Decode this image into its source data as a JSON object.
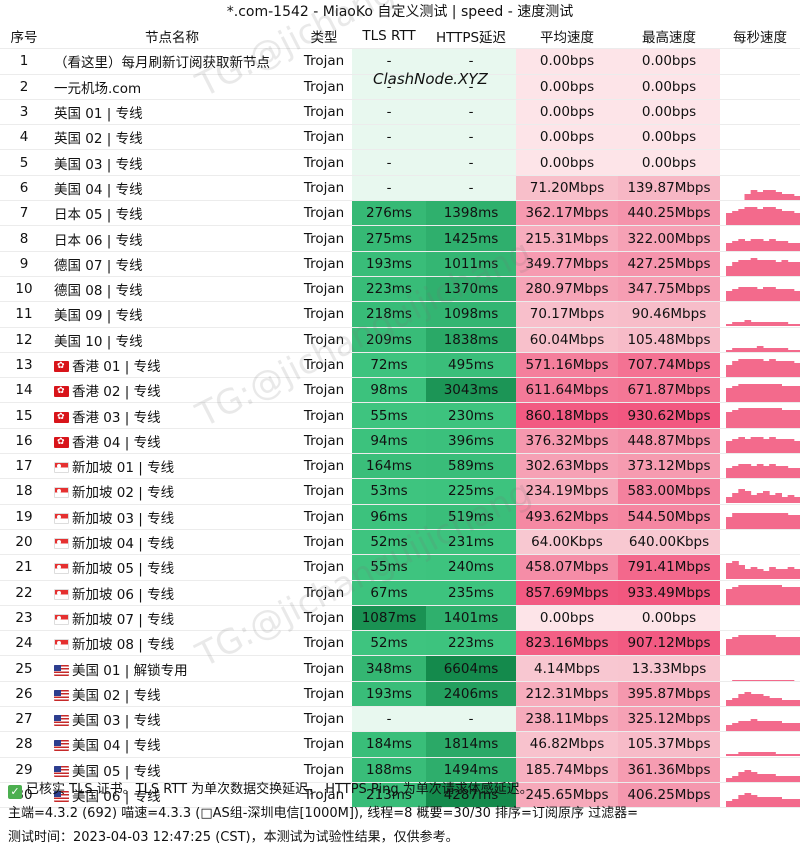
{
  "title": "*.com-1542 - MiaoKo 自定义测试 | speed - 速度测试",
  "columns": [
    "序号",
    "节点名称",
    "类型",
    "TLS RTT",
    "HTTPS延迟",
    "平均速度",
    "最高速度",
    "每秒速度"
  ],
  "rows": [
    {
      "no": "1",
      "flag": "",
      "name": "（看这里）每月刷新订阅获取新节点",
      "type": "Trojan",
      "tls": "-",
      "https": "-",
      "avg": "0.00bps",
      "max": "0.00bps",
      "tls_ms": null,
      "https_ms": null,
      "avg_mbps": 0,
      "max_mbps": 0,
      "spark": []
    },
    {
      "no": "2",
      "flag": "",
      "name": "一元机场.com",
      "type": "Trojan",
      "tls": "-",
      "https": "-",
      "avg": "0.00bps",
      "max": "0.00bps",
      "tls_ms": null,
      "https_ms": null,
      "avg_mbps": 0,
      "max_mbps": 0,
      "spark": []
    },
    {
      "no": "3",
      "flag": "",
      "name": "英国 01 | 专线",
      "type": "Trojan",
      "tls": "-",
      "https": "-",
      "avg": "0.00bps",
      "max": "0.00bps",
      "tls_ms": null,
      "https_ms": null,
      "avg_mbps": 0,
      "max_mbps": 0,
      "spark": []
    },
    {
      "no": "4",
      "flag": "",
      "name": "英国 02 | 专线",
      "type": "Trojan",
      "tls": "-",
      "https": "-",
      "avg": "0.00bps",
      "max": "0.00bps",
      "tls_ms": null,
      "https_ms": null,
      "avg_mbps": 0,
      "max_mbps": 0,
      "spark": []
    },
    {
      "no": "5",
      "flag": "",
      "name": "美国 03 | 专线",
      "type": "Trojan",
      "tls": "-",
      "https": "-",
      "avg": "0.00bps",
      "max": "0.00bps",
      "tls_ms": null,
      "https_ms": null,
      "avg_mbps": 0,
      "max_mbps": 0,
      "spark": []
    },
    {
      "no": "6",
      "flag": "",
      "name": "美国 04 | 专线",
      "type": "Trojan",
      "tls": "-",
      "https": "-",
      "avg": "71.20Mbps",
      "max": "139.87Mbps",
      "tls_ms": null,
      "https_ms": null,
      "avg_mbps": 71.2,
      "max_mbps": 139.87,
      "spark": [
        0,
        0,
        0,
        0.3,
        0.5,
        0.4,
        0.5,
        0.5,
        0.4,
        0.3,
        0.3,
        0.2
      ]
    },
    {
      "no": "7",
      "flag": "",
      "name": "日本 05 | 专线",
      "type": "Trojan",
      "tls": "276ms",
      "https": "1398ms",
      "avg": "362.17Mbps",
      "max": "440.25Mbps",
      "tls_ms": 276,
      "https_ms": 1398,
      "avg_mbps": 362.17,
      "max_mbps": 440.25,
      "spark": [
        0.6,
        0.7,
        0.8,
        0.9,
        0.9,
        0.8,
        0.9,
        0.9,
        0.8,
        0.7,
        0.7,
        0.6
      ]
    },
    {
      "no": "8",
      "flag": "",
      "name": "日本 06 | 专线",
      "type": "Trojan",
      "tls": "275ms",
      "https": "1425ms",
      "avg": "215.31Mbps",
      "max": "322.00Mbps",
      "tls_ms": 275,
      "https_ms": 1425,
      "avg_mbps": 215.31,
      "max_mbps": 322.0,
      "spark": [
        0.4,
        0.5,
        0.6,
        0.5,
        0.6,
        0.6,
        0.5,
        0.6,
        0.5,
        0.5,
        0.4,
        0.4
      ]
    },
    {
      "no": "9",
      "flag": "",
      "name": "德国 07 | 专线",
      "type": "Trojan",
      "tls": "193ms",
      "https": "1011ms",
      "avg": "349.77Mbps",
      "max": "427.25Mbps",
      "tls_ms": 193,
      "https_ms": 1011,
      "avg_mbps": 349.77,
      "max_mbps": 427.25,
      "spark": [
        0.5,
        0.7,
        0.8,
        0.8,
        0.9,
        0.8,
        0.8,
        0.8,
        0.7,
        0.8,
        0.7,
        0.7
      ]
    },
    {
      "no": "10",
      "flag": "",
      "name": "德国 08 | 专线",
      "type": "Trojan",
      "tls": "223ms",
      "https": "1370ms",
      "avg": "280.97Mbps",
      "max": "347.75Mbps",
      "tls_ms": 223,
      "https_ms": 1370,
      "avg_mbps": 280.97,
      "max_mbps": 347.75,
      "spark": [
        0.5,
        0.6,
        0.7,
        0.7,
        0.7,
        0.6,
        0.7,
        0.7,
        0.6,
        0.6,
        0.6,
        0.5
      ]
    },
    {
      "no": "11",
      "flag": "",
      "name": "美国 09 | 专线",
      "type": "Trojan",
      "tls": "218ms",
      "https": "1098ms",
      "avg": "70.17Mbps",
      "max": "90.46Mbps",
      "tls_ms": 218,
      "https_ms": 1098,
      "avg_mbps": 70.17,
      "max_mbps": 90.46,
      "spark": [
        0.1,
        0.2,
        0.2,
        0.3,
        0.2,
        0.2,
        0.2,
        0.2,
        0.2,
        0.2,
        0.1,
        0.1
      ]
    },
    {
      "no": "12",
      "flag": "",
      "name": "美国 10 | 专线",
      "type": "Trojan",
      "tls": "209ms",
      "https": "1838ms",
      "avg": "60.04Mbps",
      "max": "105.48Mbps",
      "tls_ms": 209,
      "https_ms": 1838,
      "avg_mbps": 60.04,
      "max_mbps": 105.48,
      "spark": [
        0.1,
        0.2,
        0.2,
        0.2,
        0.2,
        0.3,
        0.2,
        0.2,
        0.2,
        0.2,
        0.1,
        0.1
      ]
    },
    {
      "no": "13",
      "flag": "hk",
      "name": "香港 01 | 专线",
      "type": "Trojan",
      "tls": "72ms",
      "https": "495ms",
      "avg": "571.16Mbps",
      "max": "707.74Mbps",
      "tls_ms": 72,
      "https_ms": 495,
      "avg_mbps": 571.16,
      "max_mbps": 707.74,
      "spark": [
        0.6,
        0.8,
        0.9,
        0.9,
        0.9,
        0.9,
        0.8,
        0.9,
        0.8,
        0.8,
        0.8,
        0.7
      ]
    },
    {
      "no": "14",
      "flag": "hk",
      "name": "香港 02 | 专线",
      "type": "Trojan",
      "tls": "98ms",
      "https": "3043ms",
      "avg": "611.64Mbps",
      "max": "671.87Mbps",
      "tls_ms": 98,
      "https_ms": 3043,
      "avg_mbps": 611.64,
      "max_mbps": 671.87,
      "spark": [
        0.7,
        0.8,
        0.9,
        0.9,
        0.9,
        0.9,
        0.9,
        0.9,
        0.9,
        0.8,
        0.8,
        0.8
      ]
    },
    {
      "no": "15",
      "flag": "hk",
      "name": "香港 03 | 专线",
      "type": "Trojan",
      "tls": "55ms",
      "https": "230ms",
      "avg": "860.18Mbps",
      "max": "930.62Mbps",
      "tls_ms": 55,
      "https_ms": 230,
      "avg_mbps": 860.18,
      "max_mbps": 930.62,
      "spark": [
        0.8,
        0.9,
        1,
        1,
        1,
        1,
        1,
        1,
        1,
        0.9,
        0.9,
        0.9
      ]
    },
    {
      "no": "16",
      "flag": "hk",
      "name": "香港 04 | 专线",
      "type": "Trojan",
      "tls": "94ms",
      "https": "396ms",
      "avg": "376.32Mbps",
      "max": "448.87Mbps",
      "tls_ms": 94,
      "https_ms": 396,
      "avg_mbps": 376.32,
      "max_mbps": 448.87,
      "spark": [
        0.6,
        0.7,
        0.8,
        0.7,
        0.8,
        0.8,
        0.7,
        0.8,
        0.7,
        0.7,
        0.7,
        0.6
      ]
    },
    {
      "no": "17",
      "flag": "sg",
      "name": "新加坡 01 | 专线",
      "type": "Trojan",
      "tls": "164ms",
      "https": "589ms",
      "avg": "302.63Mbps",
      "max": "373.12Mbps",
      "tls_ms": 164,
      "https_ms": 589,
      "avg_mbps": 302.63,
      "max_mbps": 373.12,
      "spark": [
        0.5,
        0.6,
        0.7,
        0.7,
        0.6,
        0.7,
        0.6,
        0.7,
        0.6,
        0.6,
        0.5,
        0.5
      ]
    },
    {
      "no": "18",
      "flag": "sg",
      "name": "新加坡 02 | 专线",
      "type": "Trojan",
      "tls": "53ms",
      "https": "225ms",
      "avg": "234.19Mbps",
      "max": "583.00Mbps",
      "tls_ms": 53,
      "https_ms": 225,
      "avg_mbps": 234.19,
      "max_mbps": 583.0,
      "spark": [
        0.3,
        0.5,
        0.7,
        0.6,
        0.4,
        0.5,
        0.6,
        0.4,
        0.5,
        0.3,
        0.4,
        0.3
      ]
    },
    {
      "no": "19",
      "flag": "sg",
      "name": "新加坡 03 | 专线",
      "type": "Trojan",
      "tls": "96ms",
      "https": "519ms",
      "avg": "493.62Mbps",
      "max": "544.50Mbps",
      "tls_ms": 96,
      "https_ms": 519,
      "avg_mbps": 493.62,
      "max_mbps": 544.5,
      "spark": [
        0.6,
        0.8,
        0.8,
        0.8,
        0.8,
        0.8,
        0.8,
        0.8,
        0.8,
        0.8,
        0.7,
        0.7
      ]
    },
    {
      "no": "20",
      "flag": "sg",
      "name": "新加坡 04 | 专线",
      "type": "Trojan",
      "tls": "52ms",
      "https": "231ms",
      "avg": "64.00Kbps",
      "max": "640.00Kbps",
      "tls_ms": 52,
      "https_ms": 231,
      "avg_mbps": 0.064,
      "max_mbps": 0.64,
      "spark": [
        0,
        0,
        0,
        0,
        0,
        0,
        0,
        0,
        0,
        0,
        0,
        0
      ]
    },
    {
      "no": "21",
      "flag": "sg",
      "name": "新加坡 05 | 专线",
      "type": "Trojan",
      "tls": "55ms",
      "https": "240ms",
      "avg": "458.07Mbps",
      "max": "791.41Mbps",
      "tls_ms": 55,
      "https_ms": 240,
      "avg_mbps": 458.07,
      "max_mbps": 791.41,
      "spark": [
        0.8,
        0.9,
        0.7,
        0.5,
        0.6,
        0.5,
        0.4,
        0.6,
        0.5,
        0.5,
        0.6,
        0.5
      ]
    },
    {
      "no": "22",
      "flag": "sg",
      "name": "新加坡 06 | 专线",
      "type": "Trojan",
      "tls": "67ms",
      "https": "235ms",
      "avg": "857.69Mbps",
      "max": "933.49Mbps",
      "tls_ms": 67,
      "https_ms": 235,
      "avg_mbps": 857.69,
      "max_mbps": 933.49,
      "spark": [
        0.8,
        0.9,
        1,
        1,
        1,
        1,
        1,
        1,
        1,
        0.9,
        0.9,
        0.9
      ]
    },
    {
      "no": "23",
      "flag": "sg",
      "name": "新加坡 07 | 专线",
      "type": "Trojan",
      "tls": "1087ms",
      "https": "1401ms",
      "avg": "0.00bps",
      "max": "0.00bps",
      "tls_ms": 1087,
      "https_ms": 1401,
      "avg_mbps": 0,
      "max_mbps": 0,
      "spark": []
    },
    {
      "no": "24",
      "flag": "sg",
      "name": "新加坡 08 | 专线",
      "type": "Trojan",
      "tls": "52ms",
      "https": "223ms",
      "avg": "823.16Mbps",
      "max": "907.12Mbps",
      "tls_ms": 52,
      "https_ms": 223,
      "avg_mbps": 823.16,
      "max_mbps": 907.12,
      "spark": [
        0.8,
        0.9,
        1,
        1,
        1,
        1,
        1,
        1,
        0.9,
        0.9,
        0.9,
        0.9
      ]
    },
    {
      "no": "25",
      "flag": "us",
      "name": "美国 01 | 解锁专用",
      "type": "Trojan",
      "tls": "348ms",
      "https": "6604ms",
      "avg": "4.14Mbps",
      "max": "13.33Mbps",
      "tls_ms": 348,
      "https_ms": 6604,
      "avg_mbps": 4.14,
      "max_mbps": 13.33,
      "spark": [
        0,
        0.05,
        0.05,
        0.05,
        0.05,
        0.05,
        0.05,
        0.05,
        0.05,
        0.05,
        0.05,
        0
      ]
    },
    {
      "no": "26",
      "flag": "us",
      "name": "美国 02 | 专线",
      "type": "Trojan",
      "tls": "193ms",
      "https": "2406ms",
      "avg": "212.31Mbps",
      "max": "395.87Mbps",
      "tls_ms": 193,
      "https_ms": 2406,
      "avg_mbps": 212.31,
      "max_mbps": 395.87,
      "spark": [
        0.3,
        0.4,
        0.6,
        0.7,
        0.6,
        0.6,
        0.5,
        0.4,
        0.4,
        0.3,
        0.3,
        0.3
      ]
    },
    {
      "no": "27",
      "flag": "us",
      "name": "美国 03 | 专线",
      "type": "Trojan",
      "tls": "-",
      "https": "-",
      "avg": "238.11Mbps",
      "max": "325.12Mbps",
      "tls_ms": null,
      "https_ms": null,
      "avg_mbps": 238.11,
      "max_mbps": 325.12,
      "spark": [
        0.3,
        0.4,
        0.5,
        0.5,
        0.6,
        0.5,
        0.5,
        0.5,
        0.5,
        0.4,
        0.4,
        0.4
      ]
    },
    {
      "no": "28",
      "flag": "us",
      "name": "美国 04 | 专线",
      "type": "Trojan",
      "tls": "184ms",
      "https": "1814ms",
      "avg": "46.82Mbps",
      "max": "105.37Mbps",
      "tls_ms": 184,
      "https_ms": 1814,
      "avg_mbps": 46.82,
      "max_mbps": 105.37,
      "spark": [
        0.1,
        0.1,
        0.2,
        0.2,
        0.2,
        0.2,
        0.2,
        0.2,
        0.1,
        0.1,
        0.1,
        0.1
      ]
    },
    {
      "no": "29",
      "flag": "us",
      "name": "美国 05 | 专线",
      "type": "Trojan",
      "tls": "188ms",
      "https": "1494ms",
      "avg": "185.74Mbps",
      "max": "361.36Mbps",
      "tls_ms": 188,
      "https_ms": 1494,
      "avg_mbps": 185.74,
      "max_mbps": 361.36,
      "spark": [
        0.2,
        0.3,
        0.5,
        0.6,
        0.5,
        0.4,
        0.4,
        0.4,
        0.3,
        0.3,
        0.3,
        0.3
      ]
    },
    {
      "no": "30",
      "flag": "us",
      "name": "美国 06 | 专线",
      "type": "Trojan",
      "tls": "213ms",
      "https": "4287ms",
      "avg": "245.65Mbps",
      "max": "406.25Mbps",
      "tls_ms": 213,
      "https_ms": 4287,
      "avg_mbps": 245.65,
      "max_mbps": 406.25,
      "spark": [
        0.3,
        0.4,
        0.6,
        0.7,
        0.6,
        0.5,
        0.5,
        0.5,
        0.5,
        0.4,
        0.4,
        0.4
      ]
    }
  ],
  "footer": {
    "line1": "已核实 TLS 证书。TLS RTT 为单次数据交换延迟， HTTPS Ping 为单次请求体感延迟。",
    "line2": "主端=4.3.2 (692) 喵速=4.3.3 (□AS组-深圳电信[1000M]), 线程=8 概要=30/30 排序=订阅原序 过滤器=",
    "line3": "测试时间：2023-04-03 12:47:25 (CST)，本测试为试验性结果，仅供参考。"
  },
  "watermark": {
    "center_text": "ClashNode.XYZ",
    "repeat_text": "TG:@jichanguijichang"
  },
  "colors": {
    "latency_empty": "#e8f8ef",
    "latency_fast": "#3ec47f",
    "latency_slow": "#148a4c",
    "speed_empty": "#fde4e8",
    "speed_low": "#f8c8d1",
    "speed_high": "#f2557e",
    "spark": "#f36a8c"
  }
}
